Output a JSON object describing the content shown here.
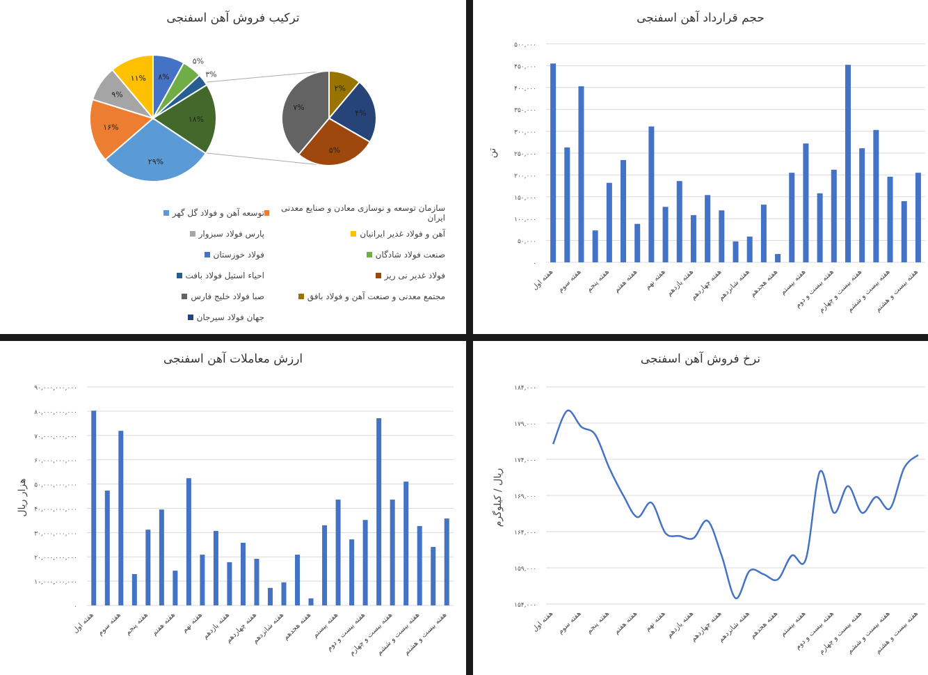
{
  "chart_data": [
    {
      "type": "pie",
      "title": "ترکیب فروش آهن اسفنجی",
      "legend": [
        "توسعه آهن و فولاد گل گهر",
        "سازمان توسعه و نوسازی معادن و صنایع معدنی ایران",
        "پارس فولاد سبزوار",
        "آهن و فولاد غدیر ایرانیان",
        "فولاد خوزستان",
        "صنعت فولاد شادگان",
        "احیاء استیل فولاد بافت",
        "فولاد غدیر نی ریز",
        "صبا فولاد خلیج فارس",
        "مجتمع معدنی و صنعت آهن و فولاد بافق",
        "جهان فولاد سیرجان"
      ],
      "colors": [
        "#5b9bd5",
        "#ed7d31",
        "#a5a5a5",
        "#ffc000",
        "#4472c4",
        "#70ad47",
        "#255e91",
        "#9e480e",
        "#636363",
        "#997300",
        "#264478"
      ],
      "main_slices": [
        {
          "name": "فولاد خوزستان",
          "value": 8,
          "label": "۸%",
          "color": "#4472c4"
        },
        {
          "name": "صنعت فولاد شادگان",
          "value": 5,
          "label": "۵%",
          "color": "#70ad47"
        },
        {
          "name": "احیاء استیل فولاد بافت",
          "value": 3,
          "label": "۳%",
          "color": "#255e91"
        },
        {
          "name": "other",
          "value": 18,
          "label": "۱۸%",
          "color": "#43682b"
        },
        {
          "name": "توسعه آهن و فولاد گل گهر",
          "value": 29,
          "label": "۲۹%",
          "color": "#5b9bd5"
        },
        {
          "name": "سازمان توسعه و نوسازی معادن و صنایع معدنی ایران",
          "value": 16,
          "label": "۱۶%",
          "color": "#ed7d31"
        },
        {
          "name": "پارس فولاد سبزوار",
          "value": 9,
          "label": "۹%",
          "color": "#a5a5a5"
        },
        {
          "name": "آهن و فولاد غدیر ایرانیان",
          "value": 11,
          "label": "۱۱%",
          "color": "#ffc000"
        }
      ],
      "sub_slices": [
        {
          "name": "مجتمع معدنی و صنعت آهن و فولاد بافق",
          "value": 2,
          "label": "۲%",
          "color": "#997300"
        },
        {
          "name": "جهان فولاد سیرجان",
          "value": 4,
          "label": "۴%",
          "color": "#264478"
        },
        {
          "name": "فولاد غدیر نی ریز",
          "value": 5,
          "label": "۵%",
          "color": "#9e480e"
        },
        {
          "name": "صبا فولاد خلیج فارس",
          "value": 7,
          "label": "۷%",
          "color": "#636363"
        }
      ],
      "legend_position": "bottom"
    },
    {
      "type": "bar",
      "title": "حجم قرارداد آهن اسفنجی",
      "ylabel": "تن",
      "ylim": [
        0,
        500000
      ],
      "grid": true,
      "color": "#4472c4",
      "yticks": [
        0,
        50000,
        100000,
        150000,
        200000,
        250000,
        300000,
        350000,
        400000,
        450000,
        500000
      ],
      "ytick_labels": [
        "۰",
        "۵۰,۰۰۰",
        "۱۰۰,۰۰۰",
        "۱۵۰,۰۰۰",
        "۲۰۰,۰۰۰",
        "۲۵۰,۰۰۰",
        "۳۰۰,۰۰۰",
        "۳۵۰,۰۰۰",
        "۴۰۰,۰۰۰",
        "۴۵۰,۰۰۰",
        "۵۰۰,۰۰۰"
      ],
      "values": [
        455000,
        263000,
        403000,
        73000,
        182000,
        234000,
        88000,
        311000,
        127000,
        186000,
        108000,
        154000,
        119000,
        48000,
        59000,
        132000,
        19000,
        205000,
        272000,
        158000,
        212000,
        452000,
        261000,
        303000,
        196000,
        140000,
        205000
      ]
    },
    {
      "type": "bar",
      "title": "ارزش معاملات آهن اسفنجی",
      "ylabel": "هزار ریال",
      "ylim": [
        0,
        90000000000
      ],
      "grid": true,
      "color": "#4472c4",
      "yticks": [
        0,
        10000000000,
        20000000000,
        30000000000,
        40000000000,
        50000000000,
        60000000000,
        70000000000,
        80000000000,
        90000000000
      ],
      "ytick_labels": [
        "۰",
        "۱۰,۰۰۰,۰۰۰,۰۰۰",
        "۲۰,۰۰۰,۰۰۰,۰۰۰",
        "۳۰,۰۰۰,۰۰۰,۰۰۰",
        "۴۰,۰۰۰,۰۰۰,۰۰۰",
        "۵۰,۰۰۰,۰۰۰,۰۰۰",
        "۶۰,۰۰۰,۰۰۰,۰۰۰",
        "۷۰,۰۰۰,۰۰۰,۰۰۰",
        "۸۰,۰۰۰,۰۰۰,۰۰۰",
        "۹۰,۰۰۰,۰۰۰,۰۰۰"
      ],
      "values": [
        80200000000,
        47300000000,
        71900000000,
        12900000000,
        31200000000,
        39500000000,
        14300000000,
        52400000000,
        20900000000,
        30700000000,
        17800000000,
        25800000000,
        19200000000,
        7200000000,
        9500000000,
        20900000000,
        2900000000,
        33000000000,
        43600000000,
        27200000000,
        35200000000,
        77100000000,
        43600000000,
        51000000000,
        32700000000,
        24100000000,
        35800000000
      ]
    },
    {
      "type": "line",
      "title": "نرخ فروش آهن اسفنجی",
      "ylabel": "ریال / کیلوگرم",
      "ylim": [
        154000,
        184000
      ],
      "grid": true,
      "color": "#4472c4",
      "yticks": [
        154000,
        159000,
        164000,
        169000,
        174000,
        179000,
        184000
      ],
      "ytick_labels": [
        "۱۵۴,۰۰۰",
        "۱۵۹,۰۰۰",
        "۱۶۴,۰۰۰",
        "۱۶۹,۰۰۰",
        "۱۷۴,۰۰۰",
        "۱۷۹,۰۰۰",
        "۱۸۴,۰۰۰"
      ],
      "values": [
        176100,
        180700,
        178500,
        177400,
        172800,
        169000,
        166000,
        168000,
        163800,
        163400,
        163100,
        165500,
        160700,
        154800,
        158600,
        158100,
        157400,
        160700,
        160200,
        172300,
        166600,
        170300,
        166600,
        168800,
        167200,
        172800,
        174600
      ]
    }
  ],
  "categories": [
    "هفته اول",
    "",
    "هفته سوم",
    "",
    "هفته پنجم",
    "",
    "هفته هفتم",
    "",
    "هفته نهم",
    "",
    "هفته یازدهم",
    "",
    "هفته چهاردهم",
    "",
    "هفته شانزدهم",
    "",
    "هفته هجدهم",
    "",
    "هفته بیستم",
    "",
    "هفته بیست و دوم",
    "",
    "هفته بیست و چهارم",
    "",
    "هفته بیست و ششم",
    "",
    "هفته بیست و هشتم"
  ]
}
